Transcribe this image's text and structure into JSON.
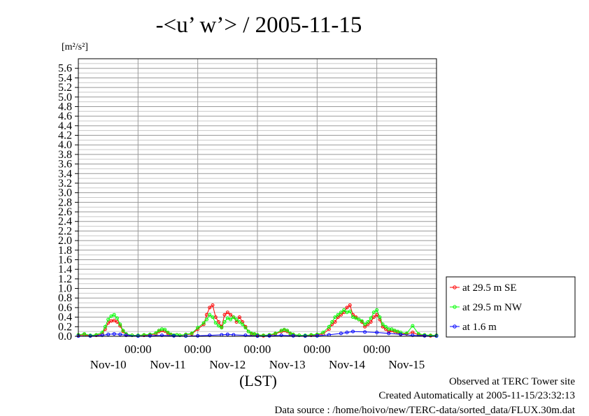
{
  "chart_data": {
    "type": "line",
    "title": "-<u’ w’> / 2005-11-15",
    "ylabel": "[m²/s²]",
    "xlabel": "(LST)",
    "ylim": [
      0,
      5.8
    ],
    "yticks": [
      "0.0",
      "0.2",
      "0.4",
      "0.6",
      "0.8",
      "1.0",
      "1.2",
      "1.4",
      "1.6",
      "1.8",
      "2.0",
      "2.2",
      "2.4",
      "2.6",
      "2.8",
      "3.0",
      "3.2",
      "3.4",
      "3.6",
      "3.8",
      "4.0",
      "4.2",
      "4.4",
      "4.6",
      "4.8",
      "5.0",
      "5.2",
      "5.4",
      "5.6"
    ],
    "xlim_days": [
      0,
      6.0
    ],
    "x_unit": "days from Nov-10 00:00 LST",
    "time_ticks": [
      "00:00",
      "00:00",
      "00:00",
      "00:00",
      "00:00"
    ],
    "date_labels": [
      "Nov-10",
      "Nov-11",
      "Nov-12",
      "Nov-13",
      "Nov-14",
      "Nov-15"
    ],
    "grid": true,
    "legend_position": "right",
    "series": [
      {
        "name": "at 29.5 m SE",
        "color": "#ff0000",
        "x": [
          0,
          0.1,
          0.2,
          0.3,
          0.4,
          0.45,
          0.5,
          0.55,
          0.6,
          0.65,
          0.7,
          0.75,
          0.8,
          0.9,
          1.0,
          1.1,
          1.2,
          1.3,
          1.35,
          1.4,
          1.45,
          1.5,
          1.55,
          1.6,
          1.65,
          1.7,
          1.8,
          1.9,
          2.0,
          2.1,
          2.15,
          2.2,
          2.25,
          2.3,
          2.35,
          2.4,
          2.45,
          2.5,
          2.55,
          2.6,
          2.65,
          2.7,
          2.75,
          2.8,
          2.85,
          2.9,
          2.95,
          3.0,
          3.1,
          3.2,
          3.3,
          3.4,
          3.45,
          3.5,
          3.55,
          3.6,
          3.7,
          3.8,
          3.9,
          4.0,
          4.1,
          4.2,
          4.25,
          4.3,
          4.35,
          4.4,
          4.45,
          4.5,
          4.55,
          4.6,
          4.65,
          4.7,
          4.75,
          4.8,
          4.85,
          4.9,
          4.95,
          5.0,
          5.05,
          5.1,
          5.15,
          5.2,
          5.25,
          5.3,
          5.35,
          5.4,
          5.5,
          5.6,
          5.7,
          5.8,
          5.9,
          6.0
        ],
        "y": [
          0.02,
          0.03,
          0.01,
          0.02,
          0.05,
          0.15,
          0.28,
          0.32,
          0.33,
          0.3,
          0.22,
          0.1,
          0.04,
          0.02,
          0.02,
          0.02,
          0.03,
          0.05,
          0.1,
          0.12,
          0.11,
          0.06,
          0.03,
          0.02,
          0.03,
          0.02,
          0.03,
          0.05,
          0.15,
          0.25,
          0.45,
          0.6,
          0.65,
          0.4,
          0.3,
          0.2,
          0.45,
          0.5,
          0.45,
          0.4,
          0.3,
          0.4,
          0.3,
          0.2,
          0.1,
          0.05,
          0.04,
          0.02,
          0.01,
          0.02,
          0.05,
          0.1,
          0.12,
          0.1,
          0.05,
          0.03,
          0.02,
          0.01,
          0.02,
          0.03,
          0.05,
          0.15,
          0.25,
          0.3,
          0.4,
          0.45,
          0.5,
          0.6,
          0.65,
          0.45,
          0.4,
          0.35,
          0.3,
          0.2,
          0.25,
          0.3,
          0.4,
          0.45,
          0.35,
          0.2,
          0.15,
          0.1,
          0.12,
          0.1,
          0.08,
          0.05,
          0.05,
          0.08,
          0.03,
          0.02,
          0.01,
          0.02
        ]
      },
      {
        "name": "at 29.5 m NW",
        "color": "#00ff00",
        "x": [
          0,
          0.1,
          0.2,
          0.3,
          0.4,
          0.45,
          0.5,
          0.55,
          0.6,
          0.65,
          0.7,
          0.75,
          0.8,
          0.9,
          1.0,
          1.1,
          1.2,
          1.3,
          1.35,
          1.4,
          1.45,
          1.5,
          1.55,
          1.6,
          1.65,
          1.7,
          1.8,
          1.9,
          2.0,
          2.1,
          2.15,
          2.2,
          2.25,
          2.3,
          2.35,
          2.4,
          2.45,
          2.5,
          2.55,
          2.6,
          2.65,
          2.7,
          2.75,
          2.8,
          2.85,
          2.9,
          2.95,
          3.0,
          3.1,
          3.2,
          3.3,
          3.4,
          3.45,
          3.5,
          3.55,
          3.6,
          3.7,
          3.8,
          3.9,
          4.0,
          4.1,
          4.2,
          4.25,
          4.3,
          4.35,
          4.4,
          4.45,
          4.5,
          4.55,
          4.6,
          4.65,
          4.7,
          4.75,
          4.8,
          4.85,
          4.9,
          4.95,
          5.0,
          5.05,
          5.1,
          5.15,
          5.2,
          5.25,
          5.3,
          5.35,
          5.4,
          5.5,
          5.6,
          5.7,
          5.8,
          5.9,
          6.0
        ],
        "y": [
          0.03,
          0.05,
          0.02,
          0.03,
          0.08,
          0.2,
          0.35,
          0.42,
          0.45,
          0.38,
          0.25,
          0.12,
          0.05,
          0.02,
          0.02,
          0.03,
          0.04,
          0.07,
          0.12,
          0.15,
          0.14,
          0.08,
          0.04,
          0.02,
          0.03,
          0.02,
          0.04,
          0.06,
          0.18,
          0.28,
          0.35,
          0.45,
          0.4,
          0.28,
          0.22,
          0.18,
          0.3,
          0.38,
          0.35,
          0.4,
          0.35,
          0.3,
          0.25,
          0.18,
          0.1,
          0.06,
          0.05,
          0.03,
          0.02,
          0.03,
          0.06,
          0.12,
          0.14,
          0.12,
          0.06,
          0.04,
          0.02,
          0.02,
          0.03,
          0.04,
          0.08,
          0.2,
          0.3,
          0.4,
          0.45,
          0.5,
          0.55,
          0.5,
          0.52,
          0.4,
          0.38,
          0.35,
          0.32,
          0.25,
          0.3,
          0.38,
          0.5,
          0.55,
          0.4,
          0.25,
          0.2,
          0.15,
          0.15,
          0.12,
          0.1,
          0.08,
          0.06,
          0.22,
          0.05,
          0.03,
          0.02,
          0.02
        ]
      },
      {
        "name": "at 1.6 m",
        "color": "#0000ff",
        "x": [
          0,
          0.2,
          0.4,
          0.5,
          0.6,
          0.7,
          0.8,
          1.0,
          1.2,
          1.4,
          1.6,
          1.8,
          2.0,
          2.2,
          2.4,
          2.5,
          2.6,
          2.8,
          3.0,
          3.2,
          3.4,
          3.6,
          3.8,
          4.0,
          4.2,
          4.4,
          4.5,
          4.6,
          4.8,
          5.0,
          5.2,
          5.4,
          5.6,
          5.8,
          6.0
        ],
        "y": [
          0.005,
          0.005,
          0.02,
          0.04,
          0.05,
          0.04,
          0.02,
          0.005,
          0.01,
          0.02,
          0.01,
          0.005,
          0.01,
          0.02,
          0.03,
          0.04,
          0.03,
          0.02,
          0.005,
          0.01,
          0.02,
          0.01,
          0.005,
          0.01,
          0.03,
          0.06,
          0.08,
          0.1,
          0.09,
          0.08,
          0.06,
          0.04,
          0.02,
          0.01,
          0.005
        ]
      }
    ]
  },
  "footer": {
    "observed": "Observed at TERC Tower site",
    "created": "Created Automatically at 2005-11-15/23:32:13",
    "source": "Data source : /home/hoivo/new/TERC-data/sorted_data/FLUX.30m.dat"
  }
}
